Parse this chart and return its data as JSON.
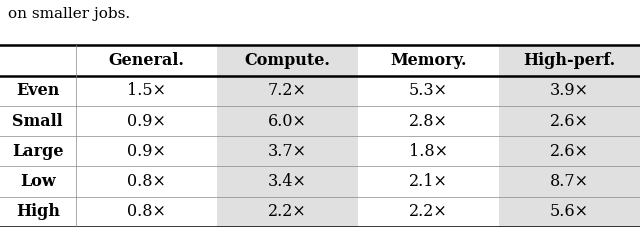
{
  "caption": "on smaller jobs.",
  "col_headers": [
    "General.",
    "Compute.",
    "Memory.",
    "High-perf."
  ],
  "row_headers": [
    "Even",
    "Small",
    "Large",
    "Low",
    "High"
  ],
  "cell_values": [
    [
      "1.5×",
      "7.2×",
      "5.3×",
      "3.9×"
    ],
    [
      "0.9×",
      "6.0×",
      "2.8×",
      "2.6×"
    ],
    [
      "0.9×",
      "3.7×",
      "1.8×",
      "2.6×"
    ],
    [
      "0.8×",
      "3.4×",
      "2.1×",
      "8.7×"
    ],
    [
      "0.8×",
      "2.2×",
      "2.2×",
      "5.6×"
    ]
  ],
  "shaded_col_indices": [
    1,
    3
  ],
  "shade_color": "#e0e0e0",
  "bg_color": "#ffffff",
  "header_fontsize": 11.5,
  "cell_fontsize": 11.5,
  "row_label_fontsize": 11.5,
  "caption_fontsize": 11,
  "fig_width": 6.4,
  "fig_height": 2.27
}
